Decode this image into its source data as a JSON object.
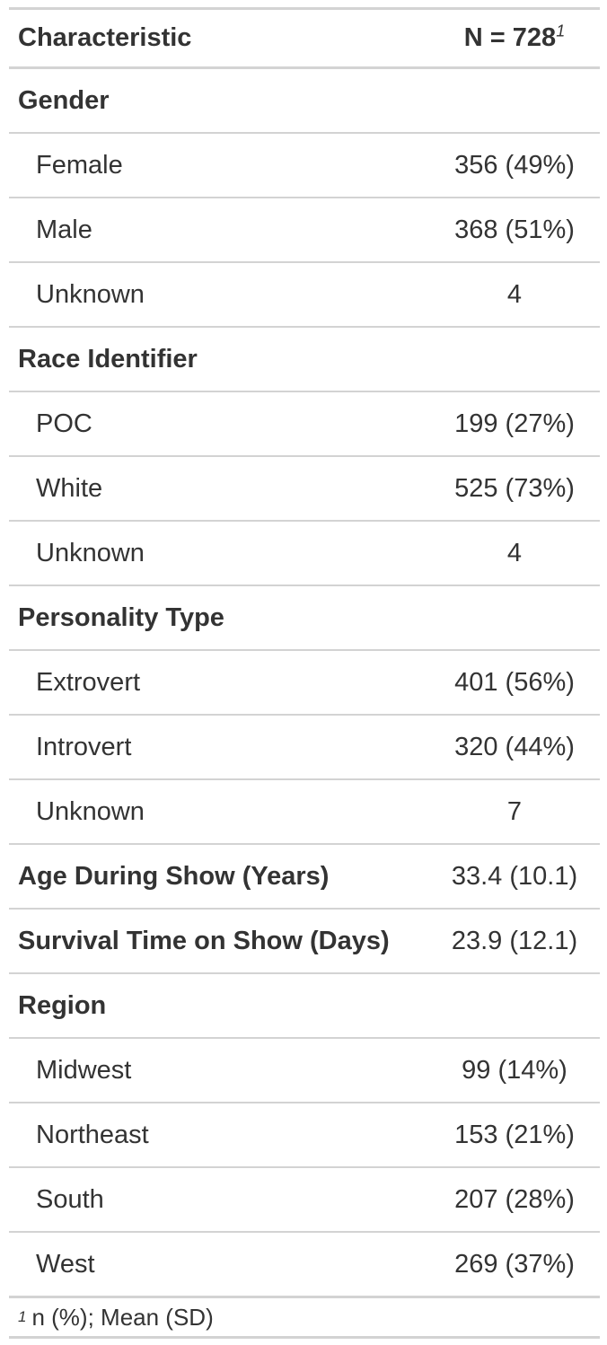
{
  "header": {
    "characteristic": "Characteristic",
    "n_label": "N = 728",
    "n_footnote_mark": "1"
  },
  "rows": [
    {
      "kind": "group",
      "label": "Gender",
      "value": ""
    },
    {
      "kind": "level",
      "label": "Female",
      "value": "356 (49%)"
    },
    {
      "kind": "level",
      "label": "Male",
      "value": "368 (51%)"
    },
    {
      "kind": "level",
      "label": "Unknown",
      "value": "4"
    },
    {
      "kind": "group",
      "label": "Race Identifier",
      "value": ""
    },
    {
      "kind": "level",
      "label": "POC",
      "value": "199 (27%)"
    },
    {
      "kind": "level",
      "label": "White",
      "value": "525 (73%)"
    },
    {
      "kind": "level",
      "label": "Unknown",
      "value": "4"
    },
    {
      "kind": "group",
      "label": "Personality Type",
      "value": ""
    },
    {
      "kind": "level",
      "label": "Extrovert",
      "value": "401 (56%)"
    },
    {
      "kind": "level",
      "label": "Introvert",
      "value": "320 (44%)"
    },
    {
      "kind": "level",
      "label": "Unknown",
      "value": "7"
    },
    {
      "kind": "group",
      "label": "Age During Show (Years)",
      "value": "33.4 (10.1)"
    },
    {
      "kind": "group",
      "label": "Survival Time on Show (Days)",
      "value": "23.9 (12.1)"
    },
    {
      "kind": "group",
      "label": "Region",
      "value": ""
    },
    {
      "kind": "level",
      "label": "Midwest",
      "value": "99 (14%)"
    },
    {
      "kind": "level",
      "label": "Northeast",
      "value": "153 (21%)"
    },
    {
      "kind": "level",
      "label": "South",
      "value": "207 (28%)"
    },
    {
      "kind": "level",
      "label": "West",
      "value": "269 (37%)"
    }
  ],
  "footnote": {
    "mark": "1",
    "text": "n (%); Mean (SD)"
  }
}
